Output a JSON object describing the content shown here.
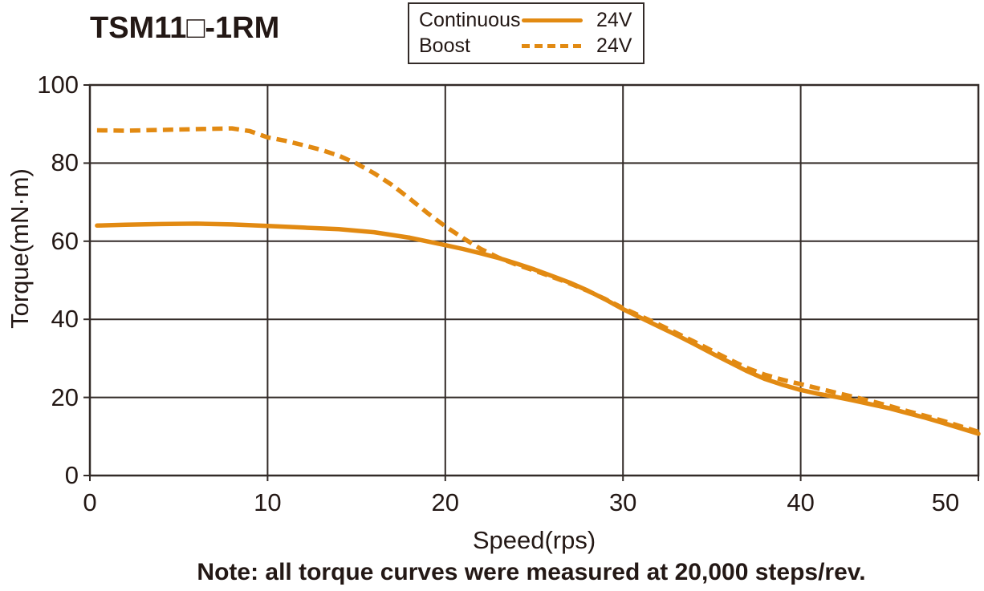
{
  "title": "TSM11□-1RM",
  "legend": {
    "rows": [
      {
        "label": "Continuous",
        "style": "solid",
        "voltage": "24V"
      },
      {
        "label": "Boost",
        "style": "dashed",
        "voltage": "24V"
      }
    ]
  },
  "x_axis": {
    "title": "Speed(rps)",
    "ticks": [
      0,
      10,
      20,
      30,
      40,
      50
    ]
  },
  "y_axis": {
    "title": "Torque(mN·m)",
    "ticks": [
      0,
      20,
      40,
      60,
      80,
      100
    ]
  },
  "note": "Note: all torque curves were measured at 20,000 steps/rev.",
  "colors": {
    "accent": "#E28A12",
    "grid": "#332B28",
    "text": "#231815"
  },
  "chart_data": {
    "type": "line",
    "title": "TSM11□-1RM",
    "xlabel": "Speed(rps)",
    "ylabel": "Torque(mN·m)",
    "xlim": [
      0,
      50
    ],
    "ylim": [
      0,
      100
    ],
    "grid": true,
    "legend_position": "top",
    "series": [
      {
        "name": "Continuous 24V",
        "style": "solid",
        "points": [
          [
            0.4,
            64.0
          ],
          [
            2,
            64.2
          ],
          [
            4,
            64.4
          ],
          [
            6,
            64.5
          ],
          [
            8,
            64.3
          ],
          [
            10,
            63.9
          ],
          [
            12,
            63.5
          ],
          [
            14,
            63.1
          ],
          [
            16,
            62.3
          ],
          [
            18,
            60.9
          ],
          [
            20,
            59.0
          ],
          [
            21,
            58.0
          ],
          [
            22,
            56.9
          ],
          [
            23,
            55.7
          ],
          [
            24,
            54.3
          ],
          [
            25,
            52.8
          ],
          [
            26,
            51.1
          ],
          [
            27,
            49.4
          ],
          [
            28,
            47.4
          ],
          [
            29,
            45.1
          ],
          [
            30,
            42.6
          ],
          [
            31,
            40.4
          ],
          [
            32,
            38.2
          ],
          [
            33,
            36.0
          ],
          [
            34,
            33.7
          ],
          [
            35,
            31.3
          ],
          [
            36,
            29.0
          ],
          [
            37,
            26.7
          ],
          [
            38,
            24.7
          ],
          [
            39,
            23.2
          ],
          [
            40,
            21.9
          ],
          [
            41,
            20.9
          ],
          [
            42,
            20.1
          ],
          [
            43,
            19.2
          ],
          [
            44,
            18.2
          ],
          [
            45,
            17.2
          ],
          [
            46,
            16.0
          ],
          [
            47,
            14.8
          ],
          [
            48,
            13.5
          ],
          [
            49,
            12.1
          ],
          [
            50,
            10.7
          ]
        ]
      },
      {
        "name": "Boost 24V",
        "style": "dashed",
        "points": [
          [
            0.4,
            88.4
          ],
          [
            2,
            88.3
          ],
          [
            4,
            88.5
          ],
          [
            6,
            88.7
          ],
          [
            8,
            88.9
          ],
          [
            9,
            88.2
          ],
          [
            10,
            86.6
          ],
          [
            11,
            85.7
          ],
          [
            12,
            84.6
          ],
          [
            13,
            83.4
          ],
          [
            14,
            81.9
          ],
          [
            15,
            79.9
          ],
          [
            16,
            77.4
          ],
          [
            17,
            74.4
          ],
          [
            18,
            70.9
          ],
          [
            19,
            67.2
          ],
          [
            20,
            63.8
          ],
          [
            21,
            60.8
          ],
          [
            22,
            58.0
          ],
          [
            23,
            55.8
          ],
          [
            24,
            54.0
          ],
          [
            25,
            52.5
          ],
          [
            26,
            50.9
          ],
          [
            27,
            49.2
          ],
          [
            28,
            47.3
          ],
          [
            29,
            45.2
          ],
          [
            30,
            42.9
          ],
          [
            31,
            40.8
          ],
          [
            32,
            38.7
          ],
          [
            33,
            36.5
          ],
          [
            34,
            34.3
          ],
          [
            35,
            32.0
          ],
          [
            36,
            29.7
          ],
          [
            37,
            27.5
          ],
          [
            38,
            25.8
          ],
          [
            39,
            24.5
          ],
          [
            40,
            23.4
          ],
          [
            41,
            22.3
          ],
          [
            42,
            21.2
          ],
          [
            43,
            20.1
          ],
          [
            44,
            19.0
          ],
          [
            45,
            17.8
          ],
          [
            46,
            16.5
          ],
          [
            47,
            15.3
          ],
          [
            48,
            14.0
          ],
          [
            49,
            12.6
          ],
          [
            50,
            11.2
          ]
        ]
      }
    ]
  }
}
